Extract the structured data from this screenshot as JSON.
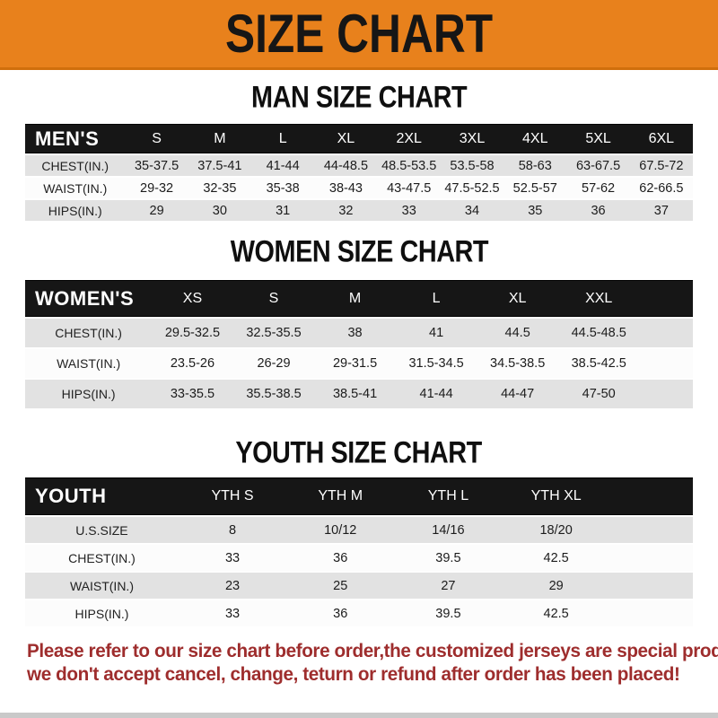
{
  "banner": {
    "title": "SIZE CHART"
  },
  "colors": {
    "banner_bg": "#E8811C",
    "header_bar_bg": "#161616",
    "row_alt_bg": "#E2E2E2",
    "footer_text": "#9E2D2D"
  },
  "sections": [
    {
      "id": "men",
      "heading": "MAN SIZE CHART",
      "header_label": "MEN'S",
      "columns": [
        "S",
        "M",
        "L",
        "XL",
        "2XL",
        "3XL",
        "4XL",
        "5XL",
        "6XL"
      ],
      "filler": false,
      "rows": [
        {
          "label": "CHEST(IN.)",
          "values": [
            "35-37.5",
            "37.5-41",
            "41-44",
            "44-48.5",
            "48.5-53.5",
            "53.5-58",
            "58-63",
            "63-67.5",
            "67.5-72"
          ]
        },
        {
          "label": "WAIST(IN.)",
          "values": [
            "29-32",
            "32-35",
            "35-38",
            "38-43",
            "43-47.5",
            "47.5-52.5",
            "52.5-57",
            "57-62",
            "62-66.5"
          ]
        },
        {
          "label": "HIPS(IN.)",
          "values": [
            "29",
            "30",
            "31",
            "32",
            "33",
            "34",
            "35",
            "36",
            "37"
          ]
        }
      ]
    },
    {
      "id": "women",
      "heading": "WOMEN SIZE CHART",
      "header_label": "WOMEN'S",
      "columns": [
        "XS",
        "S",
        "M",
        "L",
        "XL",
        "XXL"
      ],
      "filler": true,
      "rows": [
        {
          "label": "CHEST(IN.)",
          "values": [
            "29.5-32.5",
            "32.5-35.5",
            "38",
            "41",
            "44.5",
            "44.5-48.5"
          ]
        },
        {
          "label": "WAIST(IN.)",
          "values": [
            "23.5-26",
            "26-29",
            "29-31.5",
            "31.5-34.5",
            "34.5-38.5",
            "38.5-42.5"
          ]
        },
        {
          "label": "HIPS(IN.)",
          "values": [
            "33-35.5",
            "35.5-38.5",
            "38.5-41",
            "41-44",
            "44-47",
            "47-50"
          ]
        }
      ]
    },
    {
      "id": "youth",
      "heading": "YOUTH SIZE CHART",
      "header_label": "YOUTH",
      "columns": [
        "YTH S",
        "YTH M",
        "YTH L",
        "YTH XL"
      ],
      "filler": true,
      "rows": [
        {
          "label": "U.S.SIZE",
          "values": [
            "8",
            "10/12",
            "14/16",
            "18/20"
          ]
        },
        {
          "label": "CHEST(IN.)",
          "values": [
            "33",
            "36",
            "39.5",
            "42.5"
          ]
        },
        {
          "label": "WAIST(IN.)",
          "values": [
            "23",
            "25",
            "27",
            "29"
          ]
        },
        {
          "label": "HIPS(IN.)",
          "values": [
            "33",
            "36",
            "39.5",
            "42.5"
          ]
        }
      ]
    }
  ],
  "footer": {
    "line1": "Please refer to our size chart before order,the customized jerseys are special products,",
    "line2": "we don't accept cancel, change, teturn or refund after order has been placed!"
  }
}
